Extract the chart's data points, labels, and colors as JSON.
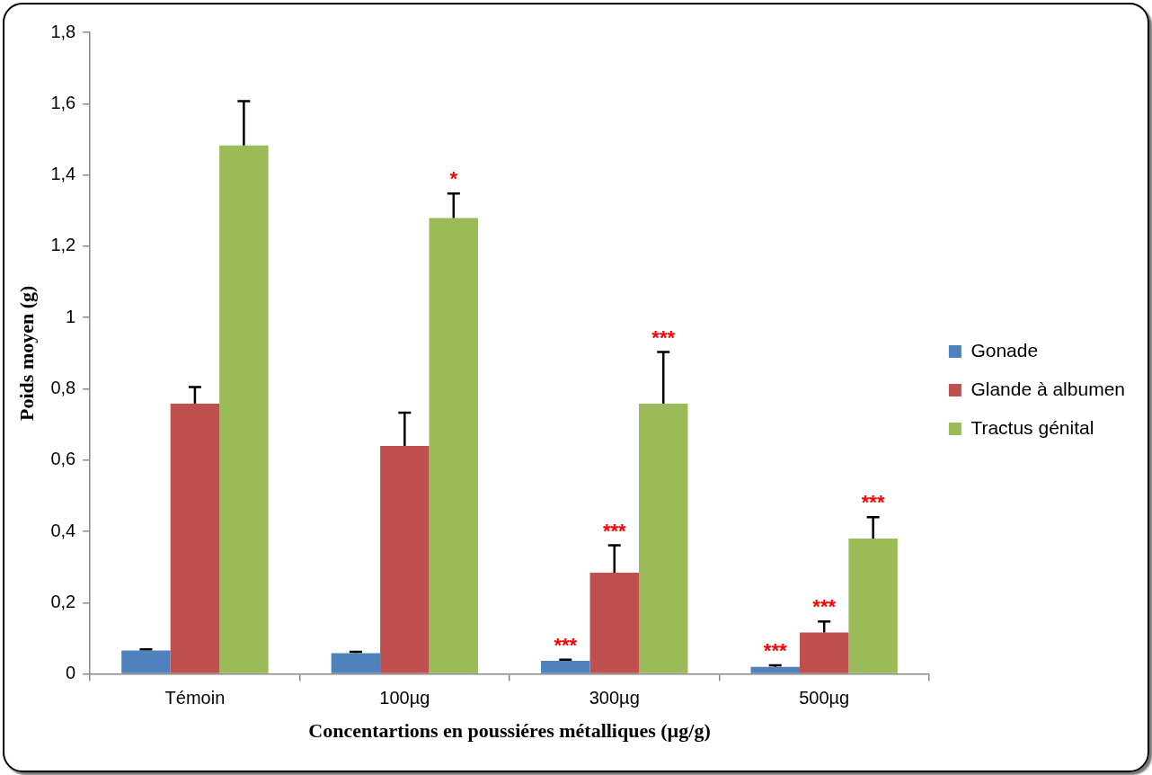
{
  "chart_data": {
    "type": "bar",
    "xlabel": "Concentartions en poussiéres métalliques (µg/g)",
    "ylabel": "Poids moyen (g)",
    "categories": [
      "Témoin",
      "100µg",
      "300µg",
      "500µg"
    ],
    "series": [
      {
        "name": "Gonade",
        "color": "#4f81bd",
        "values": [
          0.066,
          0.058,
          0.037,
          0.02
        ],
        "errors": [
          [
            0.066,
            0.069
          ],
          [
            0.058,
            0.062
          ],
          [
            0.037,
            0.04
          ],
          [
            0.02,
            0.024
          ]
        ],
        "value_labels": [
          null,
          null,
          "***",
          "***"
        ]
      },
      {
        "name": "Glande à albumen",
        "color": "#c0504d",
        "values": [
          0.758,
          0.64,
          0.284,
          0.116
        ],
        "errors": [
          [
            0.758,
            0.805
          ],
          [
            0.64,
            0.733
          ],
          [
            0.284,
            0.361
          ],
          [
            0.116,
            0.147
          ]
        ],
        "value_labels": [
          null,
          null,
          "***",
          "***"
        ]
      },
      {
        "name": "Tractus génital",
        "color": "#9bbb59",
        "values": [
          1.483,
          1.279,
          0.758,
          0.38
        ],
        "errors": [
          [
            1.483,
            1.607
          ],
          [
            1.279,
            1.348
          ],
          [
            0.758,
            0.903
          ],
          [
            0.38,
            0.44
          ]
        ],
        "value_labels": [
          null,
          "*",
          "***",
          "***"
        ]
      }
    ],
    "ylim": [
      0,
      1.8
    ],
    "yticks": [
      0,
      {
        "value": 0.2,
        "label": "0,2"
      },
      {
        "value": 0.4,
        "label": "0,4"
      },
      {
        "value": 0.6,
        "label": "0,6"
      },
      {
        "value": 0.8,
        "label": "0,8"
      },
      1,
      {
        "value": 1.2,
        "label": "1,2"
      },
      {
        "value": 1.4,
        "label": "1,4"
      },
      {
        "value": 1.6,
        "label": "1,6"
      },
      {
        "value": 1.8,
        "label": "1,8"
      }
    ],
    "grid": false,
    "legend": "right"
  }
}
